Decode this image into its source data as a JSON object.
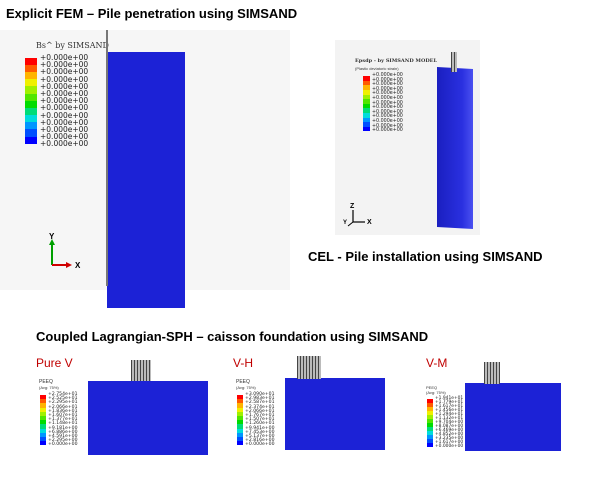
{
  "headings": {
    "explicit_fem": "Explicit FEM – Pile penetration using SIMSAND",
    "cel": "CEL - Pile installation using SIMSAND",
    "coupled": "Coupled Lagrangian-SPH – caisson foundation using SIMSAND"
  },
  "fem_panel": {
    "legend_title": "Bs^ by SIMSAND",
    "legend_values": [
      "+0.000e+00",
      "+0.000e+00",
      "+0.000e+00",
      "+0.000e+00",
      "+0.000e+00",
      "+0.000e+00",
      "+0.000e+00",
      "+0.000e+00",
      "+0.000e+00",
      "+0.000e+00",
      "+0.000e+00",
      "+0.000e+00",
      "+0.000e+00"
    ],
    "axis_y": "Y",
    "axis_x": "X",
    "mesh_color": "#1c22d6"
  },
  "cel_panel": {
    "legend_title": "Epsdp - by SIMSAND MODEL",
    "legend_subtitle": "(Plastic deviatoric strain)",
    "legend_values": [
      "+0.000e+00",
      "+0.000e+00",
      "+0.000e+00",
      "+0.000e+00",
      "+0.000e+00",
      "+0.000e+00",
      "+0.000e+00",
      "+0.000e+00",
      "+0.000e+00",
      "+0.000e+00",
      "+0.000e+00",
      "+0.000e+00",
      "+0.000e+00"
    ],
    "axis_z": "Z",
    "axis_y": "Y",
    "axis_x": "X"
  },
  "sph_panels": [
    {
      "label": "Pure V",
      "legend_title": "PEEQ",
      "legend_subtitle": "(Avg: 75%)",
      "legend_values": [
        "+2.754e+01",
        "+2.525e+01",
        "+2.295e+01",
        "+2.066e+01",
        "+1.836e+01",
        "+1.607e+01",
        "+1.377e+01",
        "+1.148e+01",
        "+9.181e+00",
        "+6.886e+00",
        "+4.591e+00",
        "+2.295e+00",
        "+0.000e+00"
      ]
    },
    {
      "label": "V-H",
      "legend_title": "PEEQ",
      "legend_subtitle": "(Avg: 75%)",
      "legend_values": [
        "+3.090e+01",
        "+2.983e+01",
        "+2.587e+01",
        "+2.374e+01",
        "+2.066e+01",
        "+1.767e+01",
        "+1.507e+01",
        "+1.260e+01",
        "+9.941e+00",
        "+7.453e+00",
        "+5.137e+00",
        "+2.816e+00",
        "+0.000e+00"
      ]
    },
    {
      "label": "V-M",
      "legend_title": "PEEQ",
      "legend_subtitle": "(Avg: 75%)",
      "legend_values": [
        "+1.941e+01",
        "+1.779e+01",
        "+1.617e+01",
        "+1.456e+01",
        "+1.294e+01",
        "+1.132e+01",
        "+9.704e+00",
        "+8.087e+00",
        "+6.469e+00",
        "+4.852e+00",
        "+3.235e+00",
        "+1.617e+00",
        "+0.000e+00"
      ]
    }
  ],
  "legend_colors": [
    "#ff0000",
    "#ff5a00",
    "#ffb400",
    "#f0f000",
    "#a0f000",
    "#50e600",
    "#00dc00",
    "#00dc78",
    "#00dcdc",
    "#0096ff",
    "#0050ff",
    "#0000ff"
  ]
}
